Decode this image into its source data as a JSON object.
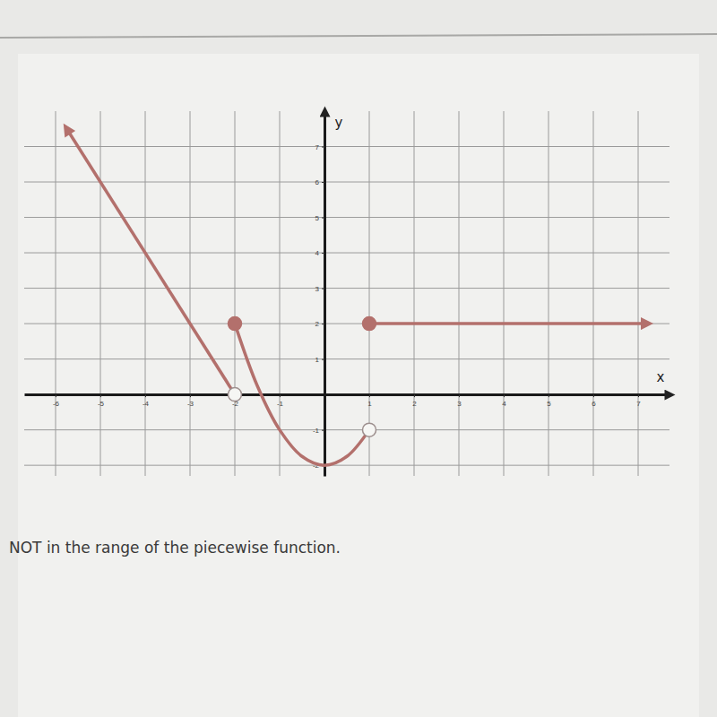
{
  "chart_data": {
    "type": "line",
    "x_label": "x",
    "y_label": "y",
    "annotations": [
      "NOT in the range of the piecewise function."
    ],
    "xlim": [
      -6.7,
      7.7
    ],
    "ylim": [
      -2.3,
      8
    ],
    "xticks": [
      -6,
      -5,
      -4,
      -3,
      -2,
      -1,
      1,
      2,
      3,
      4,
      5,
      6,
      7
    ],
    "yticks": [
      -2,
      -1,
      1,
      2,
      3,
      4,
      5,
      6,
      7
    ],
    "grid": true,
    "series": [
      {
        "type": "line",
        "color": "#b3706c",
        "marker": "arrow-start",
        "line_style": "solid",
        "x": [
          -5.75,
          -2
        ],
        "values": [
          7.5,
          0
        ]
      },
      {
        "type": "line",
        "color": "#b3706c",
        "line_style": "smooth",
        "x": [
          -2,
          -1.5,
          -1,
          -0.5,
          0,
          0.5,
          1
        ],
        "values": [
          2,
          0.25,
          -1,
          -1.75,
          -2,
          -1.75,
          -1
        ]
      },
      {
        "type": "line",
        "color": "#b3706c",
        "marker": "arrow-end",
        "line_style": "solid",
        "x": [
          1,
          7.2
        ],
        "values": [
          2,
          2
        ]
      },
      {
        "type": "scatter",
        "color": "#b3706c",
        "marker": "open-circle",
        "x": [
          -2,
          1
        ],
        "values": [
          0,
          -1
        ]
      },
      {
        "type": "scatter",
        "color": "#b3706c",
        "marker": "circle",
        "x": [
          -2,
          1
        ],
        "values": [
          2,
          2
        ]
      }
    ]
  }
}
